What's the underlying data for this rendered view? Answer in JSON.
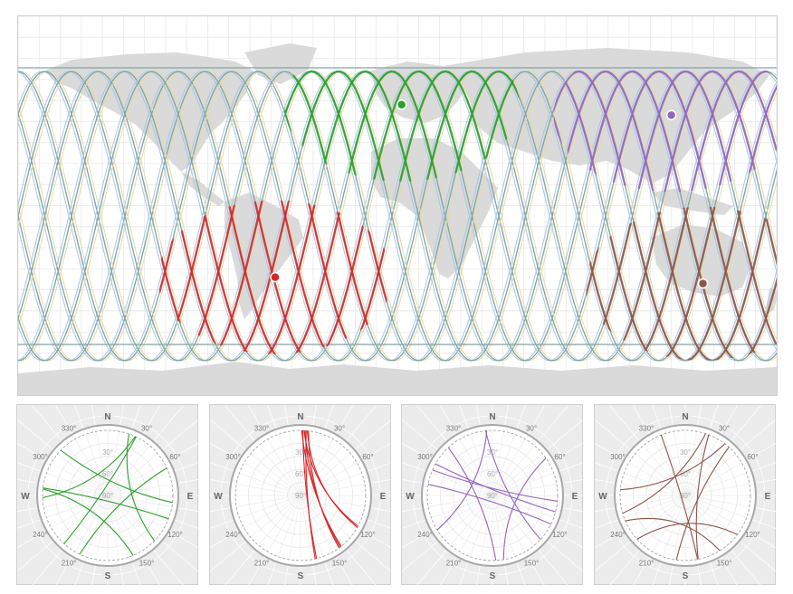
{
  "colors": {
    "land": "#dadada",
    "grid": "#e6e6e6",
    "track_teal": "#7fa3a3",
    "track_blue": "#a9c6e3",
    "track_yellow": "#e6d9a8"
  },
  "stations": [
    {
      "id": "green",
      "color": "#2ca02c",
      "lon": 2,
      "lat": 48
    },
    {
      "id": "red",
      "color": "#d62728",
      "lon": -58,
      "lat": -34
    },
    {
      "id": "purple",
      "color": "#9467bd",
      "lon": 130,
      "lat": 43
    },
    {
      "id": "brown",
      "color": "#8c564b",
      "lon": 145,
      "lat": -37
    }
  ],
  "skyplots": {
    "cardinals": {
      "north": "N",
      "east": "E",
      "south": "S",
      "west": "W"
    },
    "azimuth_labels": [
      "30°",
      "60°",
      "120°",
      "150°",
      "210°",
      "240°",
      "300°",
      "330°"
    ],
    "elevation_labels": [
      "30°",
      "60°",
      "90°"
    ],
    "panels": [
      {
        "id": "green",
        "color": "#2ca02c"
      },
      {
        "id": "red",
        "color": "#d62728"
      },
      {
        "id": "purple",
        "color": "#9467bd"
      },
      {
        "id": "brown",
        "color": "#8c564b"
      }
    ]
  }
}
